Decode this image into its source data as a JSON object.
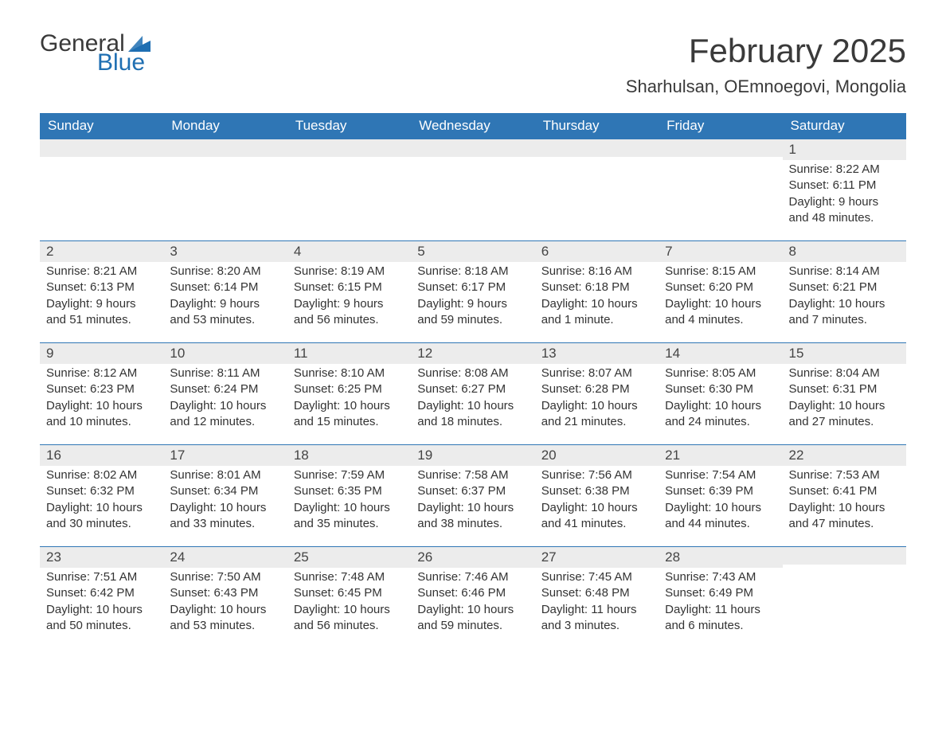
{
  "logo": {
    "general": "General",
    "blue": "Blue",
    "flag_color": "#1f6fb2"
  },
  "title": "February 2025",
  "location": "Sharhulsan, OEmnoegovi, Mongolia",
  "day_headers": [
    "Sunday",
    "Monday",
    "Tuesday",
    "Wednesday",
    "Thursday",
    "Friday",
    "Saturday"
  ],
  "labels": {
    "sunrise": "Sunrise: ",
    "sunset": "Sunset: ",
    "daylight": "Daylight: "
  },
  "colors": {
    "header_bg": "#2f76b5",
    "header_text": "#ffffff",
    "daynum_bg": "#ececec",
    "border": "#2f76b5",
    "text": "#333333",
    "logo_blue": "#1f6fb2"
  },
  "weeks": [
    [
      {
        "empty": true
      },
      {
        "empty": true
      },
      {
        "empty": true
      },
      {
        "empty": true
      },
      {
        "empty": true
      },
      {
        "empty": true
      },
      {
        "day": "1",
        "sunrise": "8:22 AM",
        "sunset": "6:11 PM",
        "daylight": "9 hours and 48 minutes."
      }
    ],
    [
      {
        "day": "2",
        "sunrise": "8:21 AM",
        "sunset": "6:13 PM",
        "daylight": "9 hours and 51 minutes."
      },
      {
        "day": "3",
        "sunrise": "8:20 AM",
        "sunset": "6:14 PM",
        "daylight": "9 hours and 53 minutes."
      },
      {
        "day": "4",
        "sunrise": "8:19 AM",
        "sunset": "6:15 PM",
        "daylight": "9 hours and 56 minutes."
      },
      {
        "day": "5",
        "sunrise": "8:18 AM",
        "sunset": "6:17 PM",
        "daylight": "9 hours and 59 minutes."
      },
      {
        "day": "6",
        "sunrise": "8:16 AM",
        "sunset": "6:18 PM",
        "daylight": "10 hours and 1 minute."
      },
      {
        "day": "7",
        "sunrise": "8:15 AM",
        "sunset": "6:20 PM",
        "daylight": "10 hours and 4 minutes."
      },
      {
        "day": "8",
        "sunrise": "8:14 AM",
        "sunset": "6:21 PM",
        "daylight": "10 hours and 7 minutes."
      }
    ],
    [
      {
        "day": "9",
        "sunrise": "8:12 AM",
        "sunset": "6:23 PM",
        "daylight": "10 hours and 10 minutes."
      },
      {
        "day": "10",
        "sunrise": "8:11 AM",
        "sunset": "6:24 PM",
        "daylight": "10 hours and 12 minutes."
      },
      {
        "day": "11",
        "sunrise": "8:10 AM",
        "sunset": "6:25 PM",
        "daylight": "10 hours and 15 minutes."
      },
      {
        "day": "12",
        "sunrise": "8:08 AM",
        "sunset": "6:27 PM",
        "daylight": "10 hours and 18 minutes."
      },
      {
        "day": "13",
        "sunrise": "8:07 AM",
        "sunset": "6:28 PM",
        "daylight": "10 hours and 21 minutes."
      },
      {
        "day": "14",
        "sunrise": "8:05 AM",
        "sunset": "6:30 PM",
        "daylight": "10 hours and 24 minutes."
      },
      {
        "day": "15",
        "sunrise": "8:04 AM",
        "sunset": "6:31 PM",
        "daylight": "10 hours and 27 minutes."
      }
    ],
    [
      {
        "day": "16",
        "sunrise": "8:02 AM",
        "sunset": "6:32 PM",
        "daylight": "10 hours and 30 minutes."
      },
      {
        "day": "17",
        "sunrise": "8:01 AM",
        "sunset": "6:34 PM",
        "daylight": "10 hours and 33 minutes."
      },
      {
        "day": "18",
        "sunrise": "7:59 AM",
        "sunset": "6:35 PM",
        "daylight": "10 hours and 35 minutes."
      },
      {
        "day": "19",
        "sunrise": "7:58 AM",
        "sunset": "6:37 PM",
        "daylight": "10 hours and 38 minutes."
      },
      {
        "day": "20",
        "sunrise": "7:56 AM",
        "sunset": "6:38 PM",
        "daylight": "10 hours and 41 minutes."
      },
      {
        "day": "21",
        "sunrise": "7:54 AM",
        "sunset": "6:39 PM",
        "daylight": "10 hours and 44 minutes."
      },
      {
        "day": "22",
        "sunrise": "7:53 AM",
        "sunset": "6:41 PM",
        "daylight": "10 hours and 47 minutes."
      }
    ],
    [
      {
        "day": "23",
        "sunrise": "7:51 AM",
        "sunset": "6:42 PM",
        "daylight": "10 hours and 50 minutes."
      },
      {
        "day": "24",
        "sunrise": "7:50 AM",
        "sunset": "6:43 PM",
        "daylight": "10 hours and 53 minutes."
      },
      {
        "day": "25",
        "sunrise": "7:48 AM",
        "sunset": "6:45 PM",
        "daylight": "10 hours and 56 minutes."
      },
      {
        "day": "26",
        "sunrise": "7:46 AM",
        "sunset": "6:46 PM",
        "daylight": "10 hours and 59 minutes."
      },
      {
        "day": "27",
        "sunrise": "7:45 AM",
        "sunset": "6:48 PM",
        "daylight": "11 hours and 3 minutes."
      },
      {
        "day": "28",
        "sunrise": "7:43 AM",
        "sunset": "6:49 PM",
        "daylight": "11 hours and 6 minutes."
      },
      {
        "empty": true
      }
    ]
  ]
}
